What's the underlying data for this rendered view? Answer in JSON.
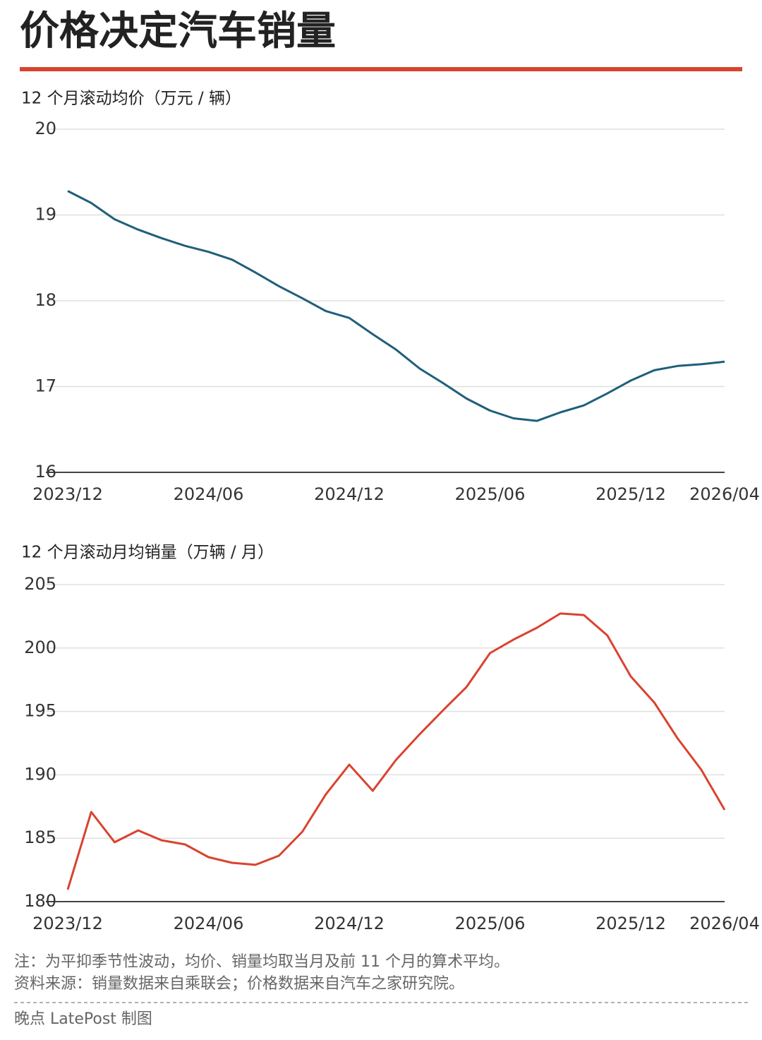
{
  "title": "价格决定汽车销量",
  "chart_data": [
    {
      "type": "line",
      "subtitle": "12 个月滚动均价（万元 / 辆）",
      "categories": [
        "2023/12",
        null,
        null,
        null,
        null,
        null,
        "2024/06",
        null,
        null,
        null,
        null,
        null,
        "2024/12",
        null,
        null,
        null,
        null,
        null,
        "2025/06",
        null,
        null,
        null,
        null,
        null,
        "2025/12",
        null,
        null,
        null,
        "2026/04"
      ],
      "values": [
        19.28,
        19.14,
        18.95,
        18.83,
        18.73,
        18.64,
        18.57,
        18.48,
        18.33,
        18.17,
        18.03,
        17.88,
        17.8,
        17.61,
        17.43,
        17.21,
        17.04,
        16.86,
        16.72,
        16.63,
        16.6,
        16.7,
        16.78,
        16.92,
        17.07,
        17.19,
        17.24,
        17.26,
        17.29
      ],
      "color": "#1f5f7a",
      "ylim": [
        16,
        20
      ],
      "yticks": [
        16,
        17,
        18,
        19,
        20
      ],
      "grid": true
    },
    {
      "type": "line",
      "subtitle": "12 个月滚动月均销量（万辆 / 月）",
      "categories": [
        "2023/12",
        null,
        null,
        null,
        null,
        null,
        "2024/06",
        null,
        null,
        null,
        null,
        null,
        "2024/12",
        null,
        null,
        null,
        null,
        null,
        "2025/06",
        null,
        null,
        null,
        null,
        null,
        "2025/12",
        null,
        null,
        null,
        "2026/04"
      ],
      "values": [
        180.95,
        187.07,
        184.68,
        185.62,
        184.84,
        184.51,
        183.51,
        183.06,
        182.9,
        183.62,
        185.51,
        188.46,
        190.8,
        188.74,
        191.19,
        193.2,
        195.09,
        196.93,
        199.6,
        200.66,
        201.6,
        202.72,
        202.6,
        200.99,
        197.76,
        195.7,
        192.86,
        190.41,
        187.24
      ],
      "color": "#d9432f",
      "ylim": [
        180,
        205
      ],
      "yticks": [
        180,
        185,
        190,
        195,
        200,
        205
      ],
      "grid": true
    }
  ],
  "notes": [
    "注：为平抑季节性波动，均价、销量均取当月及前 11 个月的算术平均。",
    "资料来源：销量数据来自乘联会；价格数据来自汽车之家研究院。"
  ],
  "credit": "晚点 LatePost 制图"
}
